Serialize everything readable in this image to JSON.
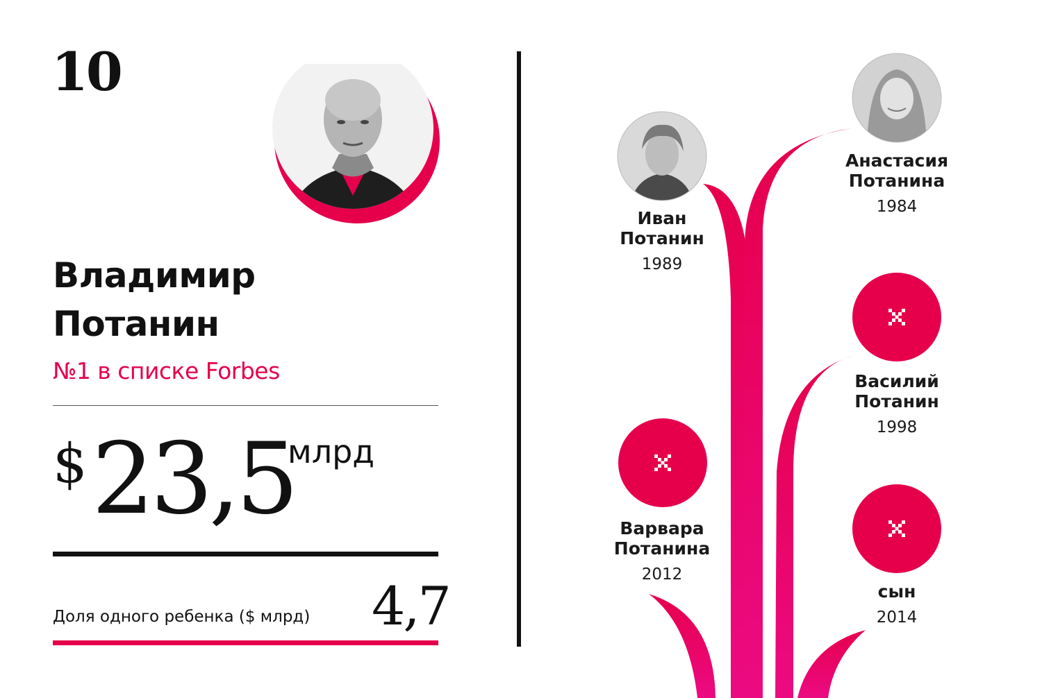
{
  "rank": "10",
  "billionaire": {
    "name_line1": "Владимир",
    "name_line2": "Потанин",
    "rank_note": "№1 в списке Forbes"
  },
  "net_worth": {
    "currency": "$",
    "value": "23,5",
    "unit": "млрд"
  },
  "child_share": {
    "label": "Доля одного ребенка ($ млрд)",
    "value": "4,7"
  },
  "children": [
    {
      "name_line1": "Иван",
      "name_line2": "Потанин",
      "year": "1989",
      "photo": "photo-icon"
    },
    {
      "name_line1": "Анастасия",
      "name_line2": "Потанина",
      "year": "1984",
      "photo": "photo-icon"
    },
    {
      "name_line1": "Василий",
      "name_line2": "Потанин",
      "year": "1998",
      "photo": "placeholder-icon"
    },
    {
      "name_line1": "Варвара",
      "name_line2": "Потанина",
      "year": "2012",
      "photo": "placeholder-icon"
    },
    {
      "name_line1": "сын",
      "name_line2": "",
      "year": "2014",
      "photo": "placeholder-icon"
    }
  ],
  "colors": {
    "accent": "#e6004c",
    "text": "#111111",
    "background": "#ffffff"
  }
}
